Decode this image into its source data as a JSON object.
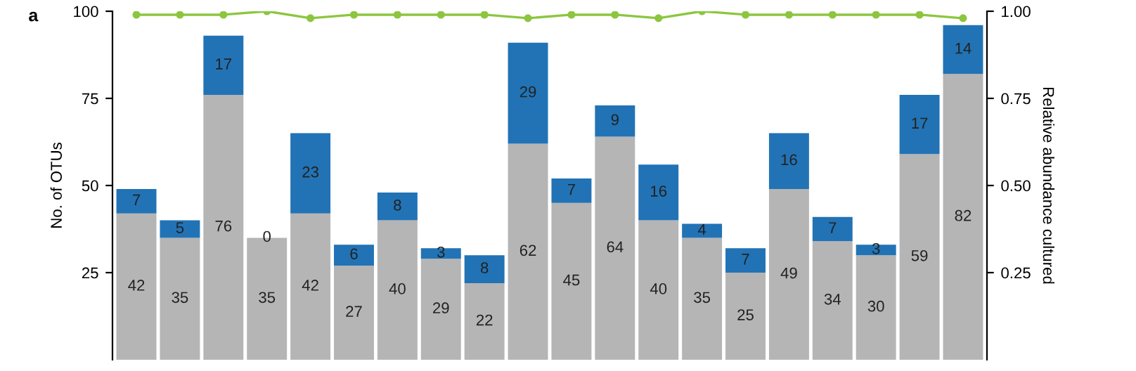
{
  "chart_data": [
    {
      "type": "bar",
      "stacked": true,
      "ylabel": "No. of OTUs",
      "annotations": [
        "a"
      ],
      "categories": [
        null,
        null,
        null,
        null,
        null,
        null,
        null,
        null,
        null,
        null,
        null,
        null,
        null,
        null,
        null,
        null,
        null,
        null,
        null,
        null
      ],
      "series": [
        {
          "color": "#b5b5b5",
          "values": [
            42,
            35,
            76,
            35,
            42,
            27,
            40,
            29,
            22,
            62,
            45,
            64,
            40,
            35,
            25,
            49,
            34,
            30,
            59,
            82
          ]
        },
        {
          "color": "#2273b5",
          "values": [
            7,
            5,
            17,
            0,
            23,
            6,
            8,
            3,
            8,
            29,
            7,
            9,
            16,
            4,
            7,
            16,
            7,
            3,
            17,
            14
          ]
        }
      ],
      "ylim": [
        0,
        100
      ],
      "yticks": [
        25,
        50,
        75,
        100
      ],
      "data_labels": true
    },
    {
      "type": "line",
      "ylabel": "Relative abundance cultured",
      "marker": "circle",
      "categories": [
        null,
        null,
        null,
        null,
        null,
        null,
        null,
        null,
        null,
        null,
        null,
        null,
        null,
        null,
        null,
        null,
        null,
        null,
        null,
        null
      ],
      "series": [
        {
          "color": "#8cc63f",
          "values": [
            0.99,
            0.99,
            0.99,
            1.0,
            0.98,
            0.99,
            0.99,
            0.99,
            0.99,
            0.98,
            0.99,
            0.99,
            0.98,
            1.0,
            0.99,
            0.99,
            0.99,
            0.99,
            0.99,
            0.98
          ]
        }
      ],
      "ylim": [
        0,
        1.0
      ],
      "yticks": [
        {
          "value": 0.25,
          "label": "0.25"
        },
        {
          "value": 0.5,
          "label": "0.50"
        },
        {
          "value": 0.75,
          "label": "0.75"
        },
        {
          "value": 1.0,
          "label": "1.00"
        }
      ]
    }
  ]
}
